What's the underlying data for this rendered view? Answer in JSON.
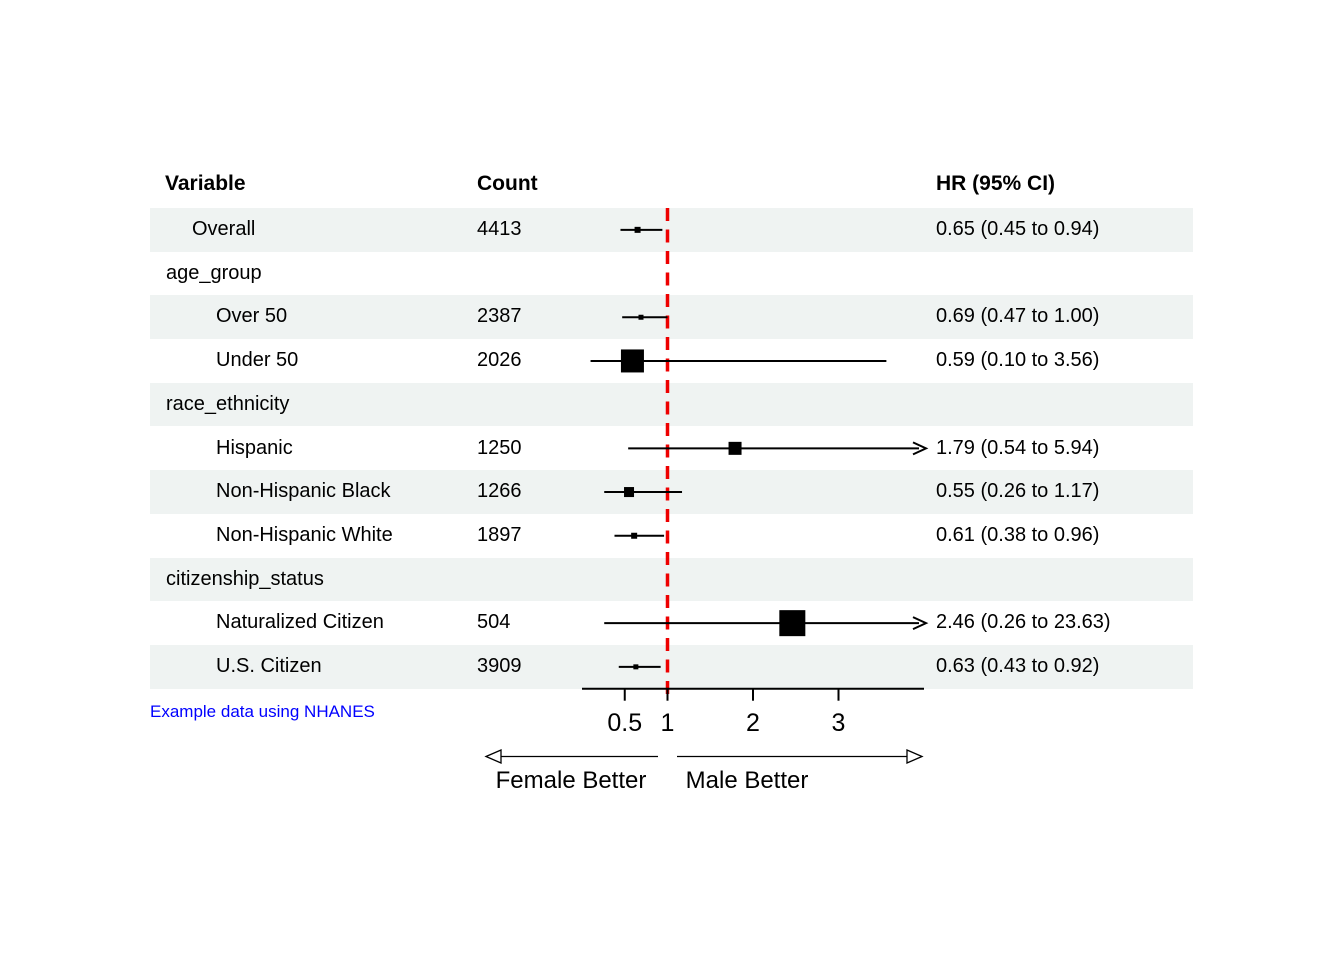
{
  "chart_data": {
    "type": "forest",
    "title": "",
    "columns": [
      "Variable",
      "Count",
      "HR (95% CI)"
    ],
    "rows": [
      {
        "label": "Overall",
        "indent": 1,
        "count": "4413",
        "hr_text": "0.65 (0.45 to 0.94)",
        "est": 0.65,
        "low": 0.45,
        "high": 0.94,
        "clipped": false,
        "marker_size": 6,
        "striped": true
      },
      {
        "label": "age_group",
        "indent": 0,
        "count": "",
        "hr_text": "",
        "est": null,
        "low": null,
        "high": null,
        "clipped": false,
        "marker_size": 0,
        "striped": false
      },
      {
        "label": "Over 50",
        "indent": 2,
        "count": "2387",
        "hr_text": "0.69 (0.47 to 1.00)",
        "est": 0.69,
        "low": 0.47,
        "high": 1.0,
        "clipped": false,
        "marker_size": 5,
        "striped": true
      },
      {
        "label": "Under 50",
        "indent": 2,
        "count": "2026",
        "hr_text": "0.59 (0.10 to 3.56)",
        "est": 0.59,
        "low": 0.1,
        "high": 3.56,
        "clipped": false,
        "marker_size": 23,
        "striped": false
      },
      {
        "label": "race_ethnicity",
        "indent": 0,
        "count": "",
        "hr_text": "",
        "est": null,
        "low": null,
        "high": null,
        "clipped": false,
        "marker_size": 0,
        "striped": true
      },
      {
        "label": "Hispanic",
        "indent": 2,
        "count": "1250",
        "hr_text": "1.79 (0.54 to 5.94)",
        "est": 1.79,
        "low": 0.54,
        "high": 5.94,
        "clipped": true,
        "marker_size": 13,
        "striped": false
      },
      {
        "label": "Non-Hispanic Black",
        "indent": 2,
        "count": "1266",
        "hr_text": "0.55 (0.26 to 1.17)",
        "est": 0.55,
        "low": 0.26,
        "high": 1.17,
        "clipped": false,
        "marker_size": 10,
        "striped": true
      },
      {
        "label": "Non-Hispanic White",
        "indent": 2,
        "count": "1897",
        "hr_text": "0.61 (0.38 to 0.96)",
        "est": 0.61,
        "low": 0.38,
        "high": 0.96,
        "clipped": false,
        "marker_size": 6,
        "striped": false
      },
      {
        "label": "citizenship_status",
        "indent": 0,
        "count": "",
        "hr_text": "",
        "est": null,
        "low": null,
        "high": null,
        "clipped": false,
        "marker_size": 0,
        "striped": true
      },
      {
        "label": "Naturalized Citizen",
        "indent": 2,
        "count": "504",
        "hr_text": "2.46 (0.26 to 23.63)",
        "est": 2.46,
        "low": 0.26,
        "high": 23.63,
        "clipped": true,
        "marker_size": 26,
        "striped": false
      },
      {
        "label": "U.S. Citizen",
        "indent": 2,
        "count": "3909",
        "hr_text": "0.63 (0.43 to 0.92)",
        "est": 0.63,
        "low": 0.43,
        "high": 0.92,
        "clipped": false,
        "marker_size": 5,
        "striped": true
      }
    ],
    "xaxis": {
      "scale": "linear",
      "xlim": [
        0,
        4
      ],
      "tick_values": [
        0.5,
        1,
        2,
        3
      ],
      "tick_labels": [
        "0.5",
        "1",
        "2",
        "3"
      ],
      "reference_line": 1
    },
    "direction_labels": {
      "left": "Female Better",
      "right": "Male Better"
    },
    "footnote": "Example data using NHANES"
  },
  "colors": {
    "stripe": "#eff3f2",
    "reference_line": "#ee0000",
    "marker": "#000000",
    "ci_line": "#000000",
    "footnote": "#0000ff",
    "text": "#000000",
    "background": "#ffffff"
  }
}
